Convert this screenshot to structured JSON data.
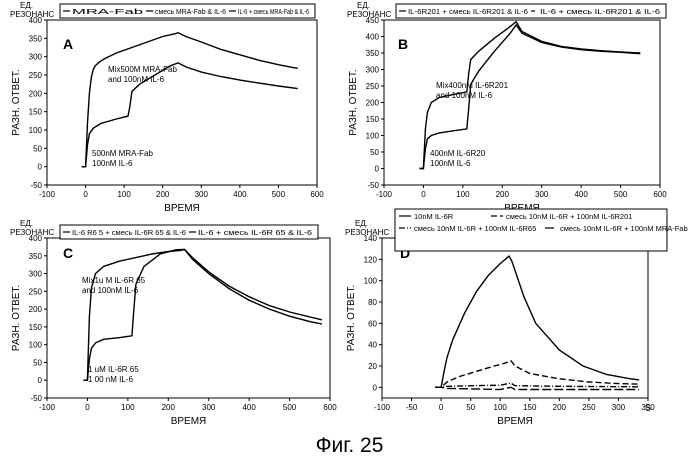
{
  "figure_caption": "Фиг. 25",
  "chart_data": [
    {
      "panel_letter": "A",
      "type": "line",
      "ylabel_top": [
        "ЕД.",
        "РЕЗОНАНС"
      ],
      "ylabel": "РАЗН. ОТВЕТ.",
      "xlabel": "ВРЕМЯ",
      "xlim": [
        -100,
        600
      ],
      "ylim": [
        -50,
        400
      ],
      "xticks": [
        -100,
        0,
        100,
        200,
        300,
        400,
        500,
        600
      ],
      "yticks": [
        -50,
        0,
        50,
        100,
        150,
        200,
        250,
        300,
        350,
        400
      ],
      "legend": [
        "MRA-Fab",
        "смесь MRA-Fab & IL-6",
        "IL-6 + смесь MRA-Fab & IL-6"
      ],
      "annotations": [
        {
          "lines": [
            "Mix500M MRA-Fab",
            "and 100nM IL-6"
          ]
        },
        {
          "lines": [
            "500nM MRA-Fab",
            "100nM IL-6"
          ]
        }
      ],
      "series": [
        {
          "style": "solid",
          "x": [
            -10,
            0,
            5,
            10,
            15,
            20,
            25,
            35,
            50,
            80,
            120,
            160,
            200,
            230,
            240,
            260,
            300,
            350,
            400,
            450,
            500,
            550
          ],
          "y": [
            0,
            0,
            120,
            200,
            245,
            265,
            275,
            285,
            295,
            310,
            325,
            340,
            355,
            362,
            365,
            355,
            340,
            320,
            305,
            290,
            278,
            268
          ]
        },
        {
          "style": "solid",
          "x": [
            -10,
            0,
            5,
            10,
            20,
            40,
            80,
            110,
            115,
            120,
            140,
            180,
            220,
            240,
            260,
            300,
            350,
            400,
            450,
            500,
            550
          ],
          "y": [
            0,
            0,
            60,
            90,
            105,
            118,
            130,
            138,
            165,
            205,
            225,
            250,
            275,
            283,
            272,
            258,
            246,
            236,
            228,
            220,
            213
          ]
        }
      ]
    },
    {
      "panel_letter": "B",
      "type": "line",
      "ylabel_top": [
        "ЕД.",
        "РЕЗОНАНС"
      ],
      "ylabel": "РАЗН. ОТВЕТ.",
      "xlabel": "ВРЕМЯ",
      "xlim": [
        -100,
        600
      ],
      "ylim": [
        -50,
        450
      ],
      "xticks": [
        -100,
        0,
        100,
        200,
        300,
        400,
        500,
        600
      ],
      "yticks": [
        -50,
        0,
        50,
        100,
        150,
        200,
        250,
        300,
        350,
        400,
        450
      ],
      "legend": [
        "IL-6R201 + смесь IL-6R201 & IL-6",
        "IL-6 + смесь IL-6R201 & IL-6"
      ],
      "annotations": [
        {
          "lines": [
            "Mix400nM IL-6R201",
            "and 100nM IL-6"
          ]
        },
        {
          "lines": [
            "400nM IL-6R20",
            "100nM IL-6"
          ]
        }
      ],
      "series": [
        {
          "style": "solid",
          "x": [
            -10,
            0,
            5,
            10,
            20,
            40,
            80,
            110,
            115,
            120,
            140,
            180,
            220,
            235,
            250,
            300,
            350,
            400,
            450,
            500,
            550
          ],
          "y": [
            0,
            0,
            120,
            170,
            200,
            215,
            225,
            232,
            290,
            330,
            355,
            395,
            430,
            445,
            415,
            385,
            370,
            362,
            357,
            353,
            350
          ]
        },
        {
          "style": "solid",
          "x": [
            -10,
            0,
            5,
            10,
            20,
            40,
            80,
            110,
            115,
            120,
            140,
            180,
            220,
            235,
            250,
            300,
            350,
            400,
            450,
            500,
            550
          ],
          "y": [
            0,
            0,
            60,
            90,
            100,
            108,
            115,
            120,
            185,
            255,
            295,
            355,
            410,
            435,
            410,
            382,
            368,
            360,
            355,
            352,
            348
          ]
        }
      ]
    },
    {
      "panel_letter": "C",
      "type": "line",
      "ylabel_top": [
        "ЕД.",
        "РЕЗОНАНС"
      ],
      "ylabel": "РАЗН. ОТВЕТ.",
      "xlabel": "ВРЕМЯ",
      "xlim": [
        -100,
        600
      ],
      "ylim": [
        -50,
        400
      ],
      "xticks": [
        -100,
        0,
        100,
        200,
        300,
        400,
        500,
        600
      ],
      "yticks": [
        -50,
        0,
        50,
        100,
        150,
        200,
        250,
        300,
        350,
        400
      ],
      "legend": [
        "IL-6 R6 5 + смесь IL-6R 65 & IL-6",
        "IL-6 + смесь IL-6R 65 & IL-6"
      ],
      "annotations": [
        {
          "lines": [
            "Mix1u M IL-6R 65",
            "and 100nM IL-6"
          ]
        },
        {
          "lines": [
            "1 uM IL-6R 65",
            "1 00 nM IL-6"
          ]
        }
      ],
      "series": [
        {
          "style": "solid",
          "x": [
            -10,
            0,
            5,
            10,
            20,
            40,
            80,
            120,
            160,
            200,
            230,
            240,
            260,
            300,
            350,
            400,
            450,
            500,
            550,
            580
          ],
          "y": [
            0,
            0,
            180,
            260,
            300,
            320,
            335,
            345,
            355,
            362,
            365,
            368,
            345,
            305,
            265,
            235,
            210,
            192,
            178,
            170
          ]
        },
        {
          "style": "solid",
          "x": [
            -10,
            0,
            5,
            10,
            20,
            40,
            80,
            110,
            115,
            120,
            140,
            180,
            220,
            240,
            260,
            300,
            350,
            400,
            450,
            500,
            550,
            580
          ],
          "y": [
            0,
            0,
            60,
            90,
            105,
            115,
            120,
            125,
            200,
            270,
            320,
            355,
            367,
            368,
            340,
            300,
            258,
            225,
            200,
            180,
            165,
            158
          ]
        }
      ]
    },
    {
      "panel_letter": "D",
      "type": "line",
      "ylabel_top": [
        "ЕД.",
        "РЕЗОНАНС"
      ],
      "ylabel": "РАЗН. ОТВЕТ.",
      "xlabel": "ВРЕМЯ",
      "x_unit_label": "S",
      "xlim": [
        -100,
        350
      ],
      "ylim": [
        -10,
        140
      ],
      "xticks": [
        -100,
        -50,
        0,
        50,
        100,
        150,
        200,
        250,
        300,
        350
      ],
      "yticks": [
        0,
        20,
        40,
        60,
        80,
        100,
        120,
        140
      ],
      "legend": [
        "10nM IL-6R",
        "смесь 10nM IL-6R + 100nM IL-6R201",
        "смесь 10nM IL-6R + 100nM IL-6R65",
        "смесь 10nM IL-6R + 100nM MRA-Fab"
      ],
      "series": [
        {
          "name": "10nM IL-6R",
          "style": "solid",
          "x": [
            -10,
            0,
            5,
            10,
            20,
            40,
            60,
            80,
            100,
            115,
            120,
            140,
            160,
            200,
            240,
            280,
            320,
            335
          ],
          "y": [
            0,
            0,
            15,
            28,
            45,
            70,
            90,
            105,
            116,
            123,
            118,
            85,
            60,
            35,
            20,
            12,
            8,
            7
          ]
        },
        {
          "name": "смесь 10nM IL-6R + 100nM IL-6R201",
          "style": "dashed",
          "x": [
            -10,
            0,
            10,
            30,
            60,
            90,
            110,
            118,
            125,
            150,
            200,
            250,
            300,
            335
          ],
          "y": [
            0,
            0,
            5,
            10,
            15,
            20,
            23,
            25,
            20,
            13,
            8,
            5,
            3.5,
            3
          ]
        },
        {
          "name": "смесь 10nM IL-6R + 100nM IL-6R65",
          "style": "dash-dot",
          "x": [
            -10,
            0,
            10,
            50,
            100,
            118,
            125,
            200,
            335
          ],
          "y": [
            0,
            0,
            1,
            1.5,
            2,
            4,
            1.5,
            1,
            0.5
          ]
        },
        {
          "name": "смесь 10nM IL-6R + 100nM MRA-Fab",
          "style": "long-dash",
          "x": [
            -10,
            0,
            10,
            50,
            100,
            118,
            125,
            200,
            335
          ],
          "y": [
            0,
            0,
            -1,
            -1.5,
            -2,
            0,
            -2,
            -2,
            -2
          ]
        }
      ]
    }
  ]
}
